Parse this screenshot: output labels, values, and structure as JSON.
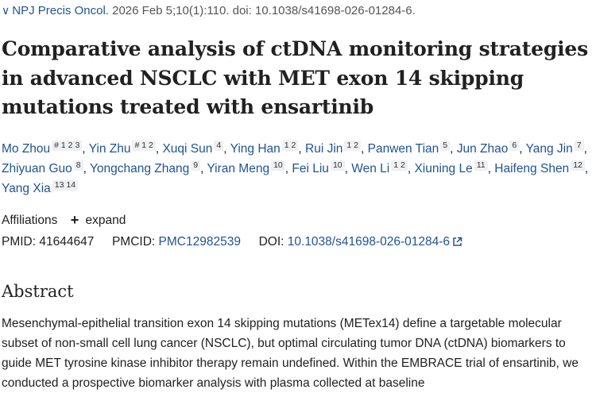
{
  "citation": {
    "journal": "NPJ Precis Oncol.",
    "details": "2026 Feb 5;10(1):110. doi: 10.1038/s41698-026-01284-6."
  },
  "title": "Comparative analysis of ctDNA monitoring strategies in advanced NSCLC with MET exon 14 skipping mutations treated with ensartinib",
  "authors": [
    {
      "name": "Mo Zhou",
      "sup": "# 1 2 3"
    },
    {
      "name": "Yin Zhu",
      "sup": "# 1 2"
    },
    {
      "name": "Xuqi Sun",
      "sup": "4"
    },
    {
      "name": "Ying Han",
      "sup": "1 2"
    },
    {
      "name": "Rui Jin",
      "sup": "1 2"
    },
    {
      "name": "Panwen Tian",
      "sup": "5"
    },
    {
      "name": "Jun Zhao",
      "sup": "6"
    },
    {
      "name": "Yang Jin",
      "sup": "7"
    },
    {
      "name": "Zhiyuan Guo",
      "sup": "8"
    },
    {
      "name": "Yongchang Zhang",
      "sup": "9"
    },
    {
      "name": "Yiran Meng",
      "sup": "10"
    },
    {
      "name": "Fei Liu",
      "sup": "10"
    },
    {
      "name": "Wen Li",
      "sup": "1 2"
    },
    {
      "name": "Xiuning Le",
      "sup": "11"
    },
    {
      "name": "Haifeng Shen",
      "sup": "12"
    },
    {
      "name": "Yang Xia",
      "sup": "13 14"
    }
  ],
  "affiliations": {
    "label": "Affiliations",
    "toggle": "expand"
  },
  "identifiers": {
    "pmid_label": "PMID:",
    "pmid": "41644647",
    "pmcid_label": "PMCID:",
    "pmcid": "PMC12982539",
    "doi_label": "DOI:",
    "doi": "10.1038/s41698-026-01284-6"
  },
  "abstract": {
    "heading": "Abstract",
    "text": "Mesenchymal-epithelial transition exon 14 skipping mutations (METex14) define a targetable molecular subset of non-small cell lung cancer (NSCLC), but optimal circulating tumor DNA (ctDNA) biomarkers to guide MET tyrosine kinase inhibitor therapy remain undefined. Within the EMBRACE trial of ensartinib, we conducted a prospective biomarker analysis with plasma collected at baseline"
  },
  "colors": {
    "link": "#205493",
    "text": "#212121",
    "badge_bg": "#eef0f2"
  }
}
